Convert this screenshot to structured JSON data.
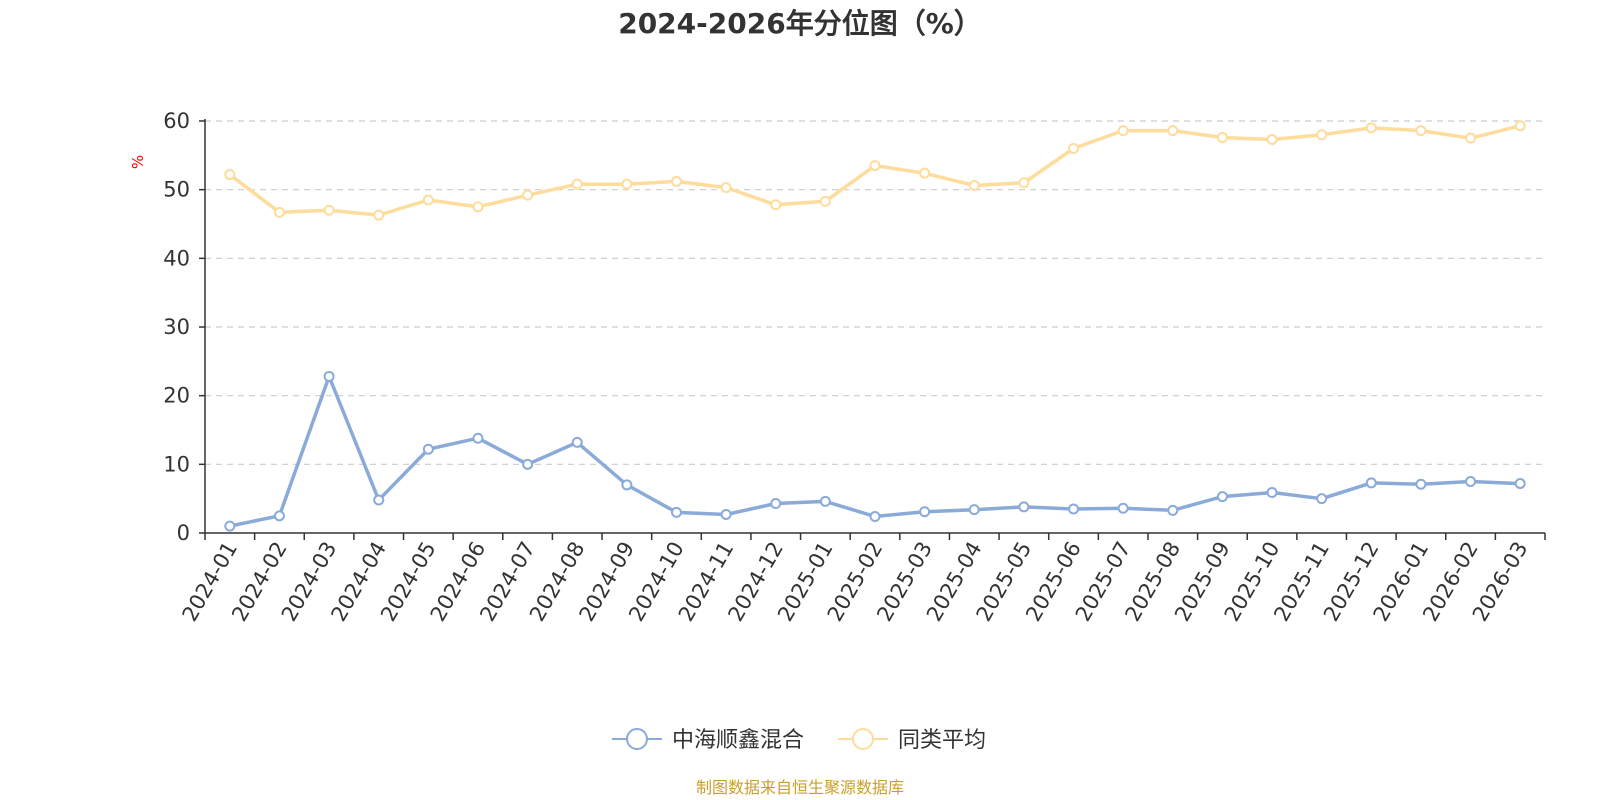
{
  "chart_data": {
    "type": "line",
    "title": "2024-2026年分位图（%）",
    "ylabel": "%",
    "xlabel": "",
    "ylim": [
      0,
      60
    ],
    "yticks": [
      0,
      10,
      20,
      30,
      40,
      50,
      60
    ],
    "grid": true,
    "legend_position": "bottom-center",
    "categories": [
      "2024-01",
      "2024-02",
      "2024-03",
      "2024-04",
      "2024-05",
      "2024-06",
      "2024-07",
      "2024-08",
      "2024-09",
      "2024-10",
      "2024-11",
      "2024-12",
      "2025-01",
      "2025-02",
      "2025-03",
      "2025-04",
      "2025-05",
      "2025-06",
      "2025-07",
      "2025-08",
      "2025-09",
      "2025-10",
      "2025-11",
      "2025-12",
      "2026-01",
      "2026-02",
      "2026-03"
    ],
    "series": [
      {
        "name": "中海顺鑫混合",
        "color": "#8aaad8",
        "values": [
          1.0,
          2.5,
          22.8,
          4.8,
          12.2,
          13.8,
          10.0,
          13.2,
          7.0,
          3.0,
          2.7,
          4.3,
          4.6,
          2.4,
          3.1,
          3.4,
          3.8,
          3.5,
          3.6,
          3.3,
          5.3,
          5.9,
          5.0,
          7.3,
          7.1,
          7.5,
          7.2
        ]
      },
      {
        "name": "同类平均",
        "color": "#fddc9c",
        "values": [
          52.2,
          46.7,
          47.0,
          46.3,
          48.5,
          47.5,
          49.2,
          50.8,
          50.8,
          51.2,
          50.3,
          47.8,
          48.3,
          53.5,
          52.4,
          50.6,
          51.0,
          56.0,
          58.6,
          58.6,
          57.6,
          57.3,
          58.0,
          59.0,
          58.6,
          57.5,
          59.3
        ]
      }
    ],
    "source": "制图数据来自恒生聚源数据库",
    "source_color": "#c9a02a",
    "unit_color": "#ff0000",
    "axis_color": "#333333",
    "grid_color": "#cccccc"
  }
}
